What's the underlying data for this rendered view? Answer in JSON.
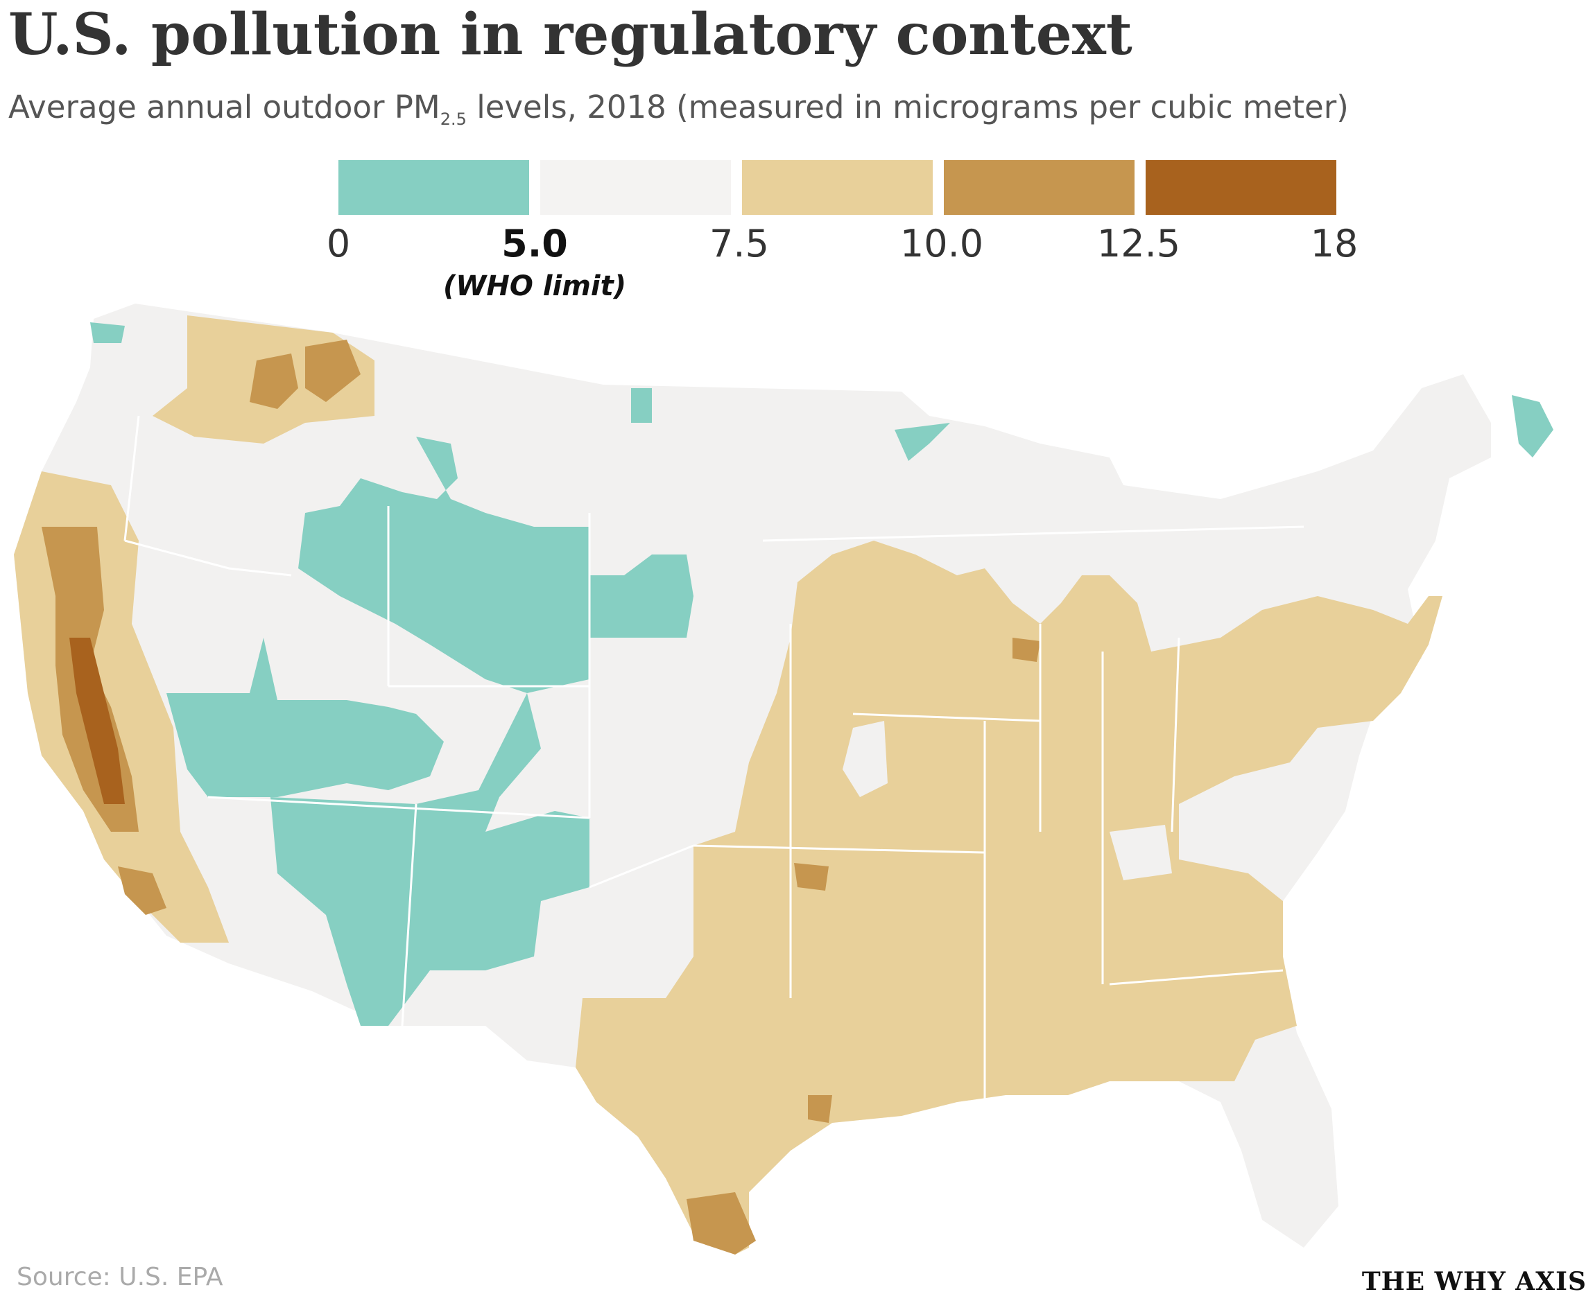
{
  "header": {
    "title": "U.S. pollution in regulatory context",
    "subtitle_main": "Average annual outdoor PM",
    "subtitle_sub": "2.5",
    "subtitle_rest": " levels, 2018 (measured in micrograms per cubic meter)"
  },
  "legend": {
    "bins": [
      {
        "from": 0,
        "to": 5.0,
        "color": "#86cfc2"
      },
      {
        "from": 5.0,
        "to": 7.5,
        "color": "#f4f3f2"
      },
      {
        "from": 7.5,
        "to": 10.0,
        "color": "#e8d09a"
      },
      {
        "from": 10.0,
        "to": 12.5,
        "color": "#c6964f"
      },
      {
        "from": 12.5,
        "to": 18,
        "color": "#a8621e"
      }
    ],
    "ticks": [
      "0",
      "5.0",
      "7.5",
      "10.0",
      "12.5",
      "18"
    ],
    "who_note": "(WHO limit)"
  },
  "map": {
    "region": "Contiguous United States",
    "base_color": "#f2f1f0",
    "border_color": "#ffffff",
    "areas": [
      {
        "name": "Northern Rockies / Great Basin",
        "bin": "0-5.0"
      },
      {
        "name": "Four Corners / Southwest",
        "bin": "0-5.0"
      },
      {
        "name": "Northern Maine",
        "bin": "0-5.0"
      },
      {
        "name": "Midwest and South",
        "bin": "7.5-10.0"
      },
      {
        "name": "Texas",
        "bin": "7.5-10.0"
      },
      {
        "name": "Northern Idaho / Western Montana",
        "bin": "7.5-10.0"
      },
      {
        "name": "Central Valley, California",
        "bin": "12.5-18"
      },
      {
        "name": "Rio Grande Valley",
        "bin": "10.0-12.5"
      }
    ]
  },
  "footer": {
    "source": "Source: U.S. EPA",
    "brand": "THE WHY AXIS"
  }
}
